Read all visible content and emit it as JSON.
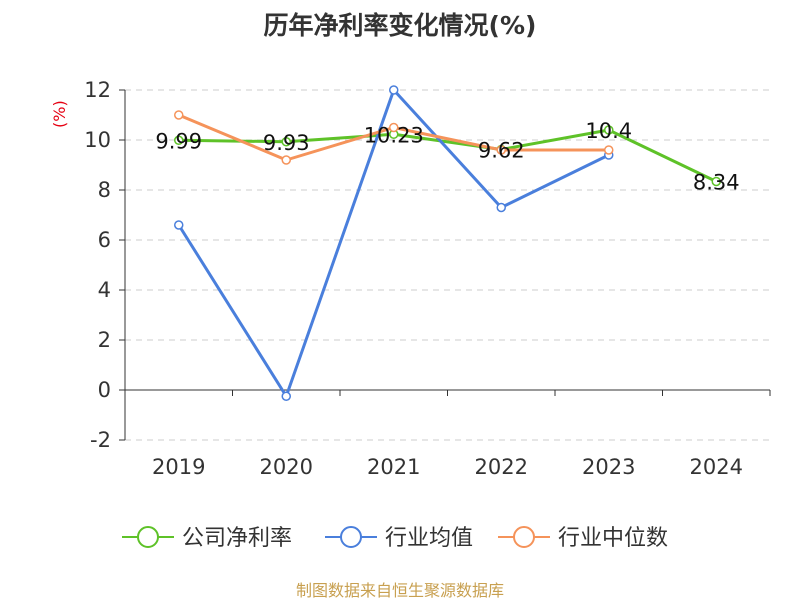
{
  "chart_data": {
    "type": "line",
    "title": "历年净利率变化情况(%)",
    "ylabel": "(%)",
    "xlabel": "",
    "categories": [
      "2019",
      "2020",
      "2021",
      "2022",
      "2023",
      "2024"
    ],
    "ylim": [
      -2,
      12
    ],
    "yticks": [
      -2,
      0,
      2,
      4,
      6,
      8,
      10,
      12
    ],
    "grid": true,
    "legend_position": "bottom",
    "series": [
      {
        "name": "公司净利率",
        "color": "#5ec228",
        "values": [
          9.99,
          9.93,
          10.23,
          9.62,
          10.4,
          8.34
        ],
        "labels": [
          "9.99",
          "9.93",
          "10.23",
          "9.62",
          "10.4",
          "8.34"
        ]
      },
      {
        "name": "行业均值",
        "color": "#4a7fdc",
        "values": [
          6.6,
          -0.25,
          12.0,
          7.3,
          9.4,
          null
        ]
      },
      {
        "name": "行业中位数",
        "color": "#f5935a",
        "values": [
          11.0,
          9.2,
          10.5,
          9.6,
          9.6,
          null
        ]
      }
    ]
  },
  "source": "制图数据来自恒生聚源数据库"
}
